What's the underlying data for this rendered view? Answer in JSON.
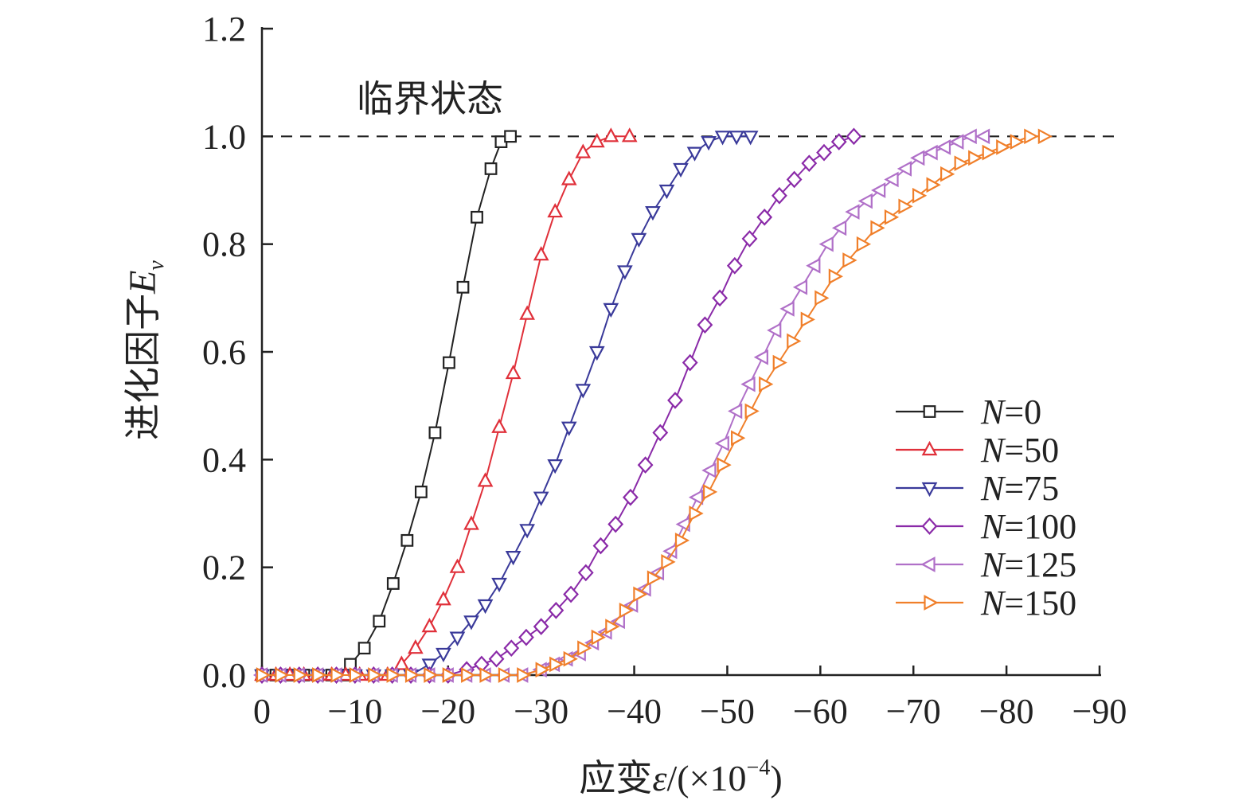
{
  "chart_data": {
    "type": "line",
    "title": "",
    "annotation": "临界状态",
    "xlabel_prefix": "应变",
    "xlabel_symbol": "ε",
    "xlabel_units": "/(×10",
    "xlabel_exp": "−4",
    "xlabel_close": ")",
    "ylabel_prefix": "进化因子",
    "ylabel_symbol": "E",
    "ylabel_sub": "v",
    "xlim": [
      0,
      -90
    ],
    "ylim": [
      0,
      1.2
    ],
    "xticks": [
      0,
      -10,
      -20,
      -30,
      -40,
      -50,
      -60,
      -70,
      -80,
      -90
    ],
    "xtick_labels": [
      "0",
      "−10",
      "−20",
      "−30",
      "−40",
      "−50",
      "−60",
      "−70",
      "−80",
      "−90"
    ],
    "yticks": [
      0,
      0.2,
      0.4,
      0.6,
      0.8,
      1.0,
      1.2
    ],
    "ytick_labels": [
      "0.0",
      "0.2",
      "0.4",
      "0.6",
      "0.8",
      "1.0",
      "1.2"
    ],
    "reference_line": {
      "y": 1.0,
      "style": "dashed"
    },
    "legend_position": "right",
    "series": [
      {
        "name": "N=0",
        "label_n": "N",
        "label_val": "=0",
        "color": "#222222",
        "marker": "square",
        "x": [
          0,
          -1.5,
          -3,
          -4.5,
          -6,
          -7.5,
          -9,
          -9.5,
          -11,
          -12.6,
          -14.1,
          -15.6,
          -17.1,
          -18.6,
          -20.1,
          -21.6,
          -23.1,
          -24.6,
          -25.7,
          -26.7
        ],
        "y": [
          0,
          0,
          0,
          0,
          0,
          0,
          0,
          0.02,
          0.05,
          0.1,
          0.17,
          0.25,
          0.34,
          0.45,
          0.58,
          0.72,
          0.85,
          0.94,
          0.99,
          1.0
        ]
      },
      {
        "name": "N=50",
        "label_n": "N",
        "label_val": "=50",
        "color": "#e0303a",
        "marker": "triangle-up",
        "x": [
          0,
          -1.5,
          -3,
          -4.5,
          -6,
          -7.5,
          -9,
          -10.5,
          -12,
          -13.5,
          -15,
          -16.5,
          -18,
          -19.5,
          -21,
          -22.5,
          -24,
          -25.5,
          -27,
          -28.5,
          -30,
          -31.5,
          -33,
          -34.5,
          -36,
          -37.5,
          -39.5
        ],
        "y": [
          0,
          0,
          0,
          0,
          0,
          0,
          0,
          0,
          0,
          0,
          0.02,
          0.05,
          0.09,
          0.14,
          0.2,
          0.28,
          0.36,
          0.46,
          0.56,
          0.67,
          0.78,
          0.86,
          0.92,
          0.97,
          0.99,
          1.0,
          1.0
        ]
      },
      {
        "name": "N=75",
        "label_n": "N",
        "label_val": "=75",
        "color": "#3a3a9a",
        "marker": "triangle-down",
        "x": [
          0,
          -2,
          -4,
          -6,
          -8,
          -10,
          -12,
          -14,
          -16,
          -18,
          -19.5,
          -21,
          -22.5,
          -24,
          -25.5,
          -27,
          -28.5,
          -30,
          -31.5,
          -33,
          -34.5,
          -36,
          -37.5,
          -39,
          -40.5,
          -42,
          -43.5,
          -45,
          -46.5,
          -48,
          -49.5,
          -51,
          -52.5
        ],
        "y": [
          0,
          0,
          0,
          0,
          0,
          0,
          0,
          0,
          0,
          0.02,
          0.04,
          0.07,
          0.1,
          0.13,
          0.17,
          0.22,
          0.27,
          0.33,
          0.39,
          0.46,
          0.53,
          0.6,
          0.68,
          0.75,
          0.81,
          0.86,
          0.9,
          0.94,
          0.97,
          0.99,
          1.0,
          1.0,
          1.0
        ]
      },
      {
        "name": "N=100",
        "label_n": "N",
        "label_val": "=100",
        "color": "#8a2aa8",
        "marker": "diamond",
        "x": [
          0,
          -2,
          -4,
          -6,
          -8,
          -10,
          -12,
          -14,
          -16,
          -18,
          -20,
          -22,
          -23.6,
          -25.2,
          -26.8,
          -28.4,
          -30,
          -31.6,
          -33.2,
          -34.8,
          -36.4,
          -38,
          -39.6,
          -41.2,
          -42.8,
          -44.4,
          -46,
          -47.6,
          -49.2,
          -50.8,
          -52.4,
          -54,
          -55.6,
          -57.2,
          -58.8,
          -60.4,
          -62,
          -63.6
        ],
        "y": [
          0,
          0,
          0,
          0,
          0,
          0,
          0,
          0,
          0,
          0,
          0,
          0.01,
          0.02,
          0.03,
          0.05,
          0.07,
          0.09,
          0.12,
          0.15,
          0.19,
          0.24,
          0.28,
          0.33,
          0.39,
          0.45,
          0.51,
          0.58,
          0.65,
          0.7,
          0.76,
          0.81,
          0.85,
          0.89,
          0.92,
          0.95,
          0.97,
          0.99,
          1.0
        ]
      },
      {
        "name": "N=125",
        "label_n": "N",
        "label_val": "=125",
        "color": "#b070c8",
        "marker": "triangle-left",
        "x": [
          0,
          -2,
          -4,
          -6,
          -8,
          -10,
          -12,
          -14,
          -16,
          -18,
          -20,
          -22,
          -24,
          -26,
          -28,
          -30,
          -31.4,
          -32.8,
          -34.2,
          -35.6,
          -37,
          -38.4,
          -39.8,
          -41.2,
          -42.6,
          -44,
          -45.4,
          -46.8,
          -48.2,
          -49.6,
          -51,
          -52.4,
          -53.8,
          -55.2,
          -56.6,
          -58,
          -59.4,
          -60.8,
          -62.2,
          -63.6,
          -65,
          -66.4,
          -67.8,
          -69.2,
          -70.6,
          -72,
          -73.4,
          -74.8,
          -76.2,
          -77.6
        ],
        "y": [
          0,
          0,
          0,
          0,
          0,
          0,
          0,
          0,
          0,
          0,
          0,
          0,
          0,
          0,
          0,
          0.01,
          0.02,
          0.03,
          0.04,
          0.06,
          0.08,
          0.1,
          0.13,
          0.16,
          0.19,
          0.23,
          0.28,
          0.33,
          0.38,
          0.43,
          0.49,
          0.54,
          0.59,
          0.64,
          0.68,
          0.72,
          0.76,
          0.8,
          0.83,
          0.86,
          0.88,
          0.9,
          0.92,
          0.94,
          0.96,
          0.97,
          0.98,
          0.99,
          1.0,
          1.0
        ]
      },
      {
        "name": "N=150",
        "label_n": "N",
        "label_val": "=150",
        "color": "#f07f2a",
        "marker": "triangle-right",
        "x": [
          0,
          -2,
          -4,
          -6,
          -8,
          -10,
          -12,
          -14,
          -16,
          -18,
          -20,
          -22,
          -24,
          -26,
          -28,
          -30,
          -31.5,
          -33,
          -34.5,
          -36,
          -37.5,
          -39,
          -40.5,
          -42,
          -43.5,
          -45,
          -46.5,
          -48,
          -49.5,
          -51,
          -52.5,
          -54,
          -55.5,
          -57,
          -58.5,
          -60,
          -61.5,
          -63,
          -64.5,
          -66,
          -67.5,
          -69,
          -70.5,
          -72,
          -73.5,
          -75,
          -76.5,
          -78,
          -79.5,
          -81,
          -82.5,
          -84
        ],
        "y": [
          0,
          0,
          0,
          0,
          0,
          0,
          0,
          0,
          0,
          0,
          0,
          0,
          0,
          0,
          0,
          0.01,
          0.02,
          0.03,
          0.05,
          0.07,
          0.09,
          0.12,
          0.15,
          0.18,
          0.21,
          0.25,
          0.3,
          0.34,
          0.39,
          0.44,
          0.49,
          0.54,
          0.58,
          0.62,
          0.66,
          0.7,
          0.74,
          0.77,
          0.8,
          0.83,
          0.85,
          0.87,
          0.89,
          0.91,
          0.93,
          0.95,
          0.96,
          0.97,
          0.98,
          0.99,
          1.0,
          1.0
        ]
      }
    ]
  }
}
